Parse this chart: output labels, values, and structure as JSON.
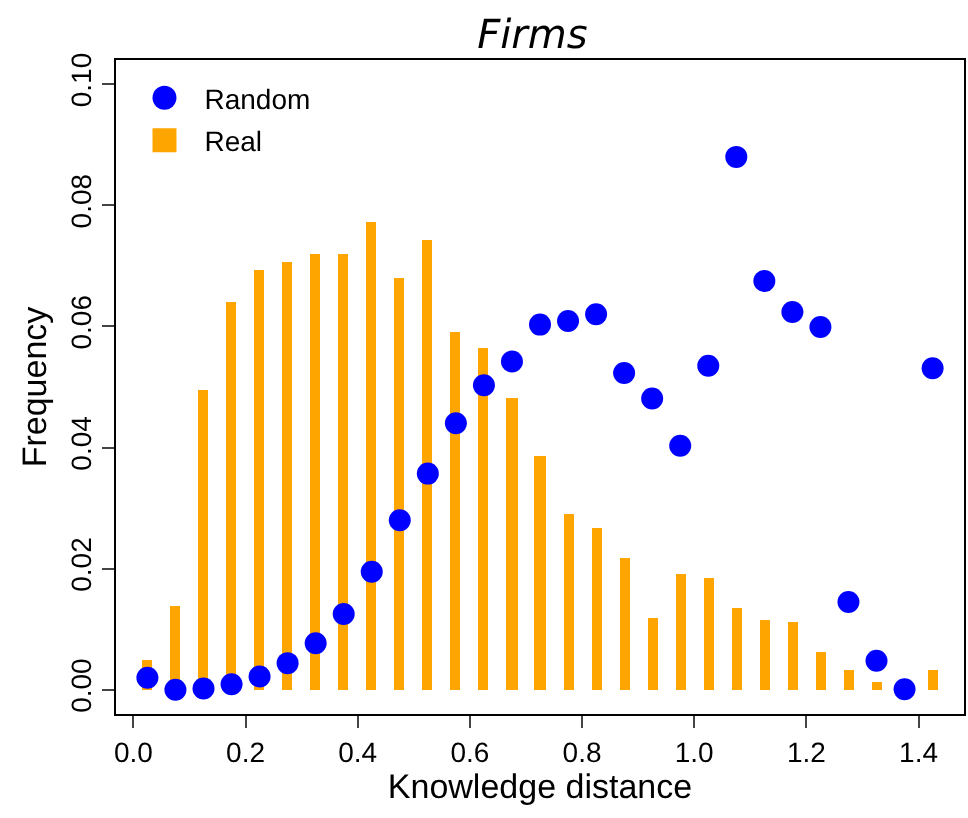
{
  "chart_data": {
    "type": "bar",
    "title": "Firms",
    "xlabel": "Knowledge distance",
    "ylabel": "Frequency",
    "x": [
      0.025,
      0.075,
      0.125,
      0.175,
      0.225,
      0.275,
      0.325,
      0.375,
      0.425,
      0.475,
      0.525,
      0.575,
      0.625,
      0.675,
      0.725,
      0.775,
      0.825,
      0.875,
      0.925,
      0.975,
      1.025,
      1.075,
      1.125,
      1.175,
      1.225,
      1.275,
      1.325,
      1.375,
      1.425
    ],
    "series": [
      {
        "name": "Random",
        "type": "scatter",
        "color": "#0000ff",
        "marker": "circle",
        "values": [
          0.002,
          0.0,
          0.0002,
          0.0009,
          0.0022,
          0.0044,
          0.0077,
          0.0125,
          0.0195,
          0.028,
          0.0357,
          0.044,
          0.0503,
          0.0542,
          0.0603,
          0.0609,
          0.062,
          0.0523,
          0.0481,
          0.0403,
          0.0535,
          0.088,
          0.0675,
          0.0624,
          0.0599,
          0.0145,
          0.0048,
          0.0001,
          0.0531
        ]
      },
      {
        "name": "Real",
        "color": "#ffa500",
        "values": [
          0.005,
          0.014,
          0.0496,
          0.064,
          0.0693,
          0.0706,
          0.0719,
          0.0721,
          0.0772,
          0.0679,
          0.0744,
          0.0591,
          0.0566,
          0.0482,
          0.0385,
          0.029,
          0.0268,
          0.0218,
          0.012,
          0.019,
          0.0184,
          0.0135,
          0.0114,
          0.0112,
          0.0064,
          0.0032,
          0.0013,
          null,
          0.0032
        ]
      }
    ],
    "xlim": [
      -0.031,
      1.481
    ],
    "ylim": [
      -0.004,
      0.104
    ],
    "xticks": [
      {
        "value": 0.0,
        "label": "0.0"
      },
      {
        "value": 0.2,
        "label": "0.2"
      },
      {
        "value": 0.4,
        "label": "0.4"
      },
      {
        "value": 0.6,
        "label": "0.6"
      },
      {
        "value": 0.8,
        "label": "0.8"
      },
      {
        "value": 1.0,
        "label": "1.0"
      },
      {
        "value": 1.2,
        "label": "1.2"
      },
      {
        "value": 1.4,
        "label": "1.4"
      }
    ],
    "yticks": [
      {
        "value": 0.0,
        "label": "0.00"
      },
      {
        "value": 0.02,
        "label": "0.02"
      },
      {
        "value": 0.04,
        "label": "0.04"
      },
      {
        "value": 0.06,
        "label": "0.06"
      },
      {
        "value": 0.08,
        "label": "0.08"
      },
      {
        "value": 0.1,
        "label": "0.10"
      }
    ],
    "legend": "top left"
  }
}
